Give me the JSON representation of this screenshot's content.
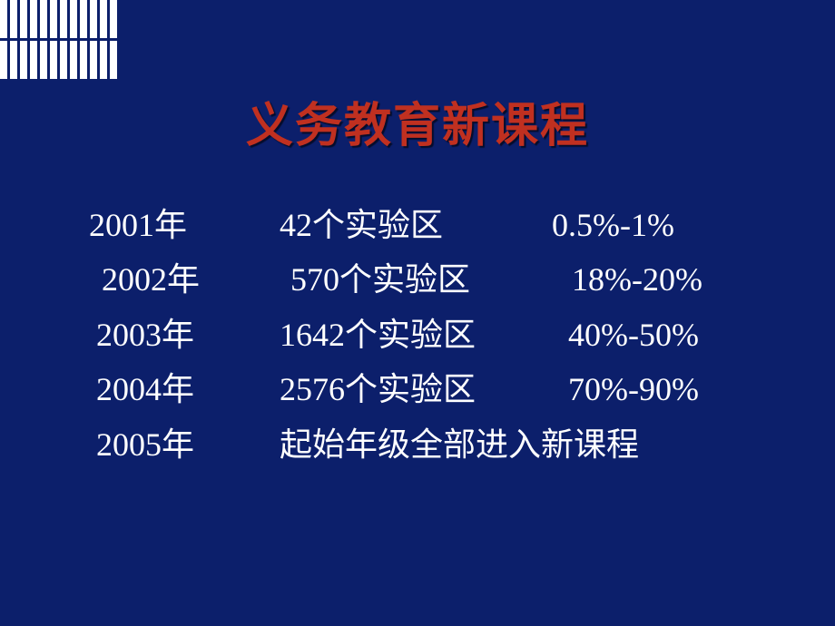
{
  "decoration": {
    "rows": 2,
    "stripes_per_row": 12,
    "stripe_color": "#ffffff",
    "background": "#0c1f6b"
  },
  "title": {
    "text": "义务教育新课程",
    "color": "#c03020",
    "fontsize_pt": 40
  },
  "table": {
    "text_color": "#ffffff",
    "fontsize_pt": 27,
    "rows": [
      {
        "year": "2001年",
        "zones": "42个实验区",
        "pct": "0.5%-1%"
      },
      {
        "year": "2002年",
        "zones": "570个实验区",
        "pct": "18%-20%"
      },
      {
        "year": "2003年",
        "zones": "1642个实验区",
        "pct": "40%-50%"
      },
      {
        "year": "2004年",
        "zones": "2576个实验区",
        "pct": "70%-90%"
      }
    ],
    "final_row": {
      "year": "2005年",
      "note": "起始年级全部进入新课程"
    }
  }
}
